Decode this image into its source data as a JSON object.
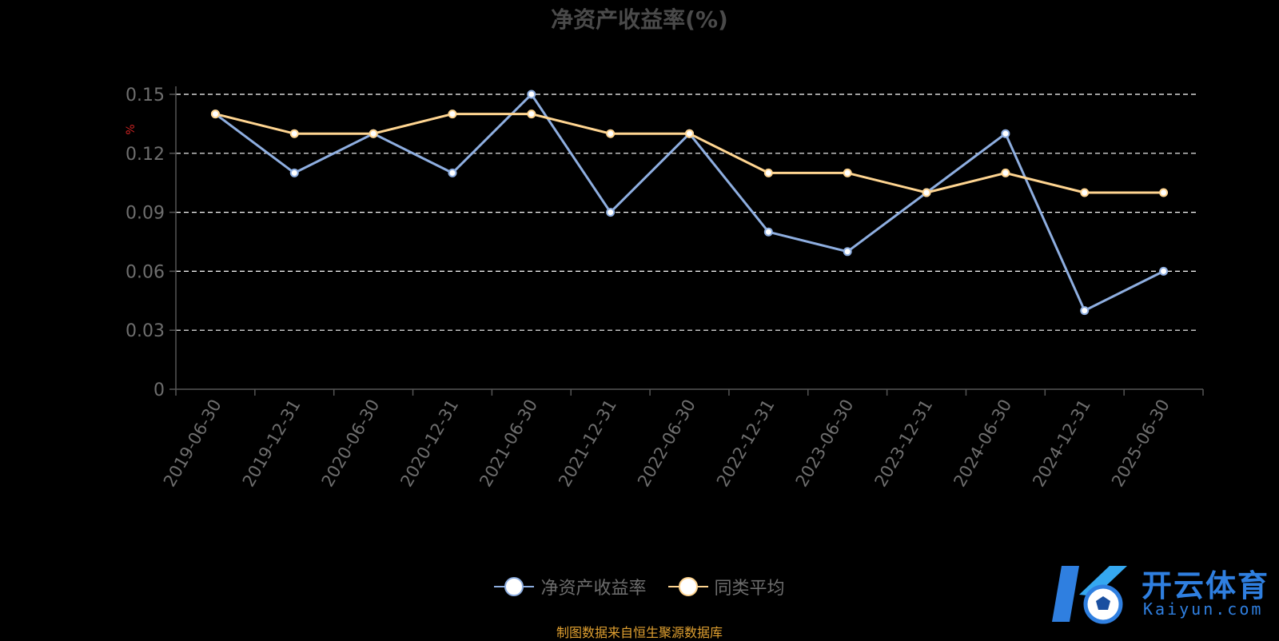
{
  "chart_data": {
    "type": "line",
    "title": "净资产收益率(%)",
    "ylabel": "%",
    "xlabel": "",
    "ylim": [
      0,
      0.15
    ],
    "yticks": [
      "0",
      "0.03",
      "0.06",
      "0.09",
      "0.12",
      "0.15"
    ],
    "categories": [
      "2019-06-30",
      "2019-12-31",
      "2020-06-30",
      "2020-12-31",
      "2021-06-30",
      "2021-12-31",
      "2022-06-30",
      "2022-12-31",
      "2023-06-30",
      "2023-12-31",
      "2024-06-30",
      "2024-12-31",
      "2025-06-30"
    ],
    "grid": true,
    "legend_position": "bottom",
    "series": [
      {
        "name": "净资产收益率",
        "color": "#8eaee0",
        "values": [
          0.14,
          0.11,
          0.13,
          0.11,
          0.15,
          0.09,
          0.13,
          0.08,
          0.07,
          0.1,
          0.13,
          0.04,
          0.06
        ]
      },
      {
        "name": "同类平均",
        "color": "#ffd591",
        "values": [
          0.14,
          0.13,
          0.13,
          0.14,
          0.14,
          0.13,
          0.13,
          0.11,
          0.11,
          0.1,
          0.11,
          0.1,
          0.1
        ]
      }
    ]
  },
  "legend": {
    "items": [
      {
        "label": "净资产收益率",
        "color": "#8eaee0"
      },
      {
        "label": "同类平均",
        "color": "#ffd591"
      }
    ]
  },
  "source": {
    "text": "制图数据来自恒生聚源数据库",
    "color": "#e0a030"
  },
  "logo": {
    "cn": "开云体育",
    "en": "Kaiyun.com",
    "color": "#2f7fe0"
  }
}
